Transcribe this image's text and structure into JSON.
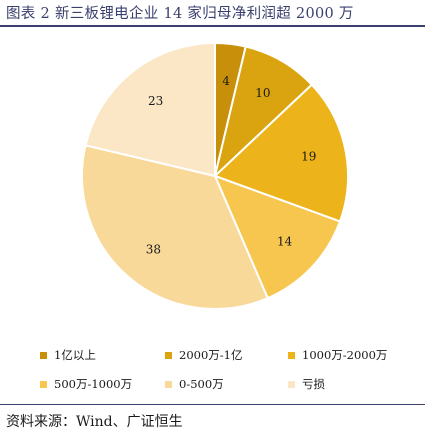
{
  "header": {
    "title": "图表 2 新三板锂电企业 14 家归母净利润超 2000 万"
  },
  "footer": {
    "source": "资料来源：Wind、广证恒生"
  },
  "chart_data": {
    "type": "pie",
    "slices": [
      {
        "label": "1亿以上",
        "value": 4,
        "color": "#c8900a"
      },
      {
        "label": "2000万-1亿",
        "value": 10,
        "color": "#d9a410"
      },
      {
        "label": "1000万-2000万",
        "value": 19,
        "color": "#ecb31a"
      },
      {
        "label": "500万-1000万",
        "value": 14,
        "color": "#f6c64f"
      },
      {
        "label": "0-500万",
        "value": 38,
        "color": "#f8d99a"
      },
      {
        "label": "亏损",
        "value": 23,
        "color": "#fbe6c6"
      }
    ],
    "legend_position": "bottom"
  }
}
